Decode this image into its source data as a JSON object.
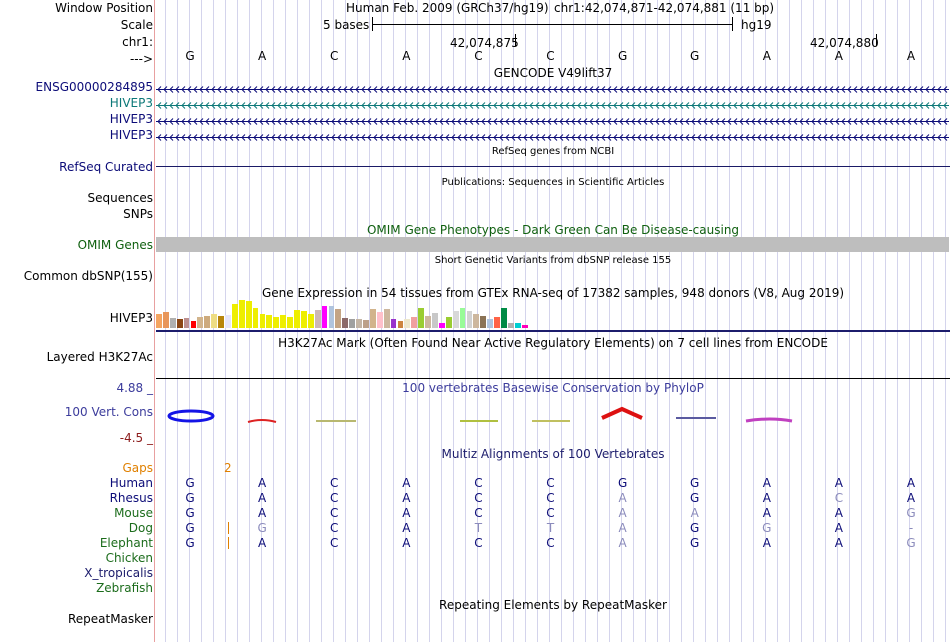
{
  "labels": {
    "window_position": "Window Position",
    "scale": "Scale",
    "chrom": "chr1:",
    "arrow": "--->",
    "gene1": "ENSG00000284895",
    "gene2": "HIVEP3",
    "gene3": "HIVEP3",
    "gene4": "HIVEP3",
    "refseq": "RefSeq Curated",
    "sequences": "Sequences",
    "snps": "SNPs",
    "omim": "OMIM Genes",
    "dbsnp": "Common dbSNP(155)",
    "gtex": "HIVEP3",
    "h3k27ac": "Layered H3K27Ac",
    "cons_max": "4.88 _",
    "cons_label": "100 Vert. Cons",
    "cons_min": "-4.5 _",
    "gaps": "Gaps",
    "species": [
      "Human",
      "Rhesus",
      "Mouse",
      "Dog",
      "Elephant",
      "Chicken",
      "X_tropicalis",
      "Zebrafish"
    ],
    "repeatmasker": "RepeatMasker"
  },
  "header": {
    "assembly": "Human Feb. 2009 (GRCh37/hg19)",
    "position": "chr1:42,074,871-42,074,881 (11 bp)",
    "scale_text": "5 bases",
    "scale_db": "hg19",
    "coord1": "42,074,875",
    "coord2": "42,074,880"
  },
  "sequence": [
    "G",
    "A",
    "C",
    "A",
    "C",
    "C",
    "G",
    "G",
    "A",
    "A",
    "A"
  ],
  "track_titles": {
    "gencode": "GENCODE V49lift37",
    "refseq": "RefSeq genes from NCBI",
    "publications": "Publications: Sequences in Scientific Articles",
    "omim": "OMIM Gene Phenotypes - Dark Green Can Be Disease-causing",
    "dbsnp": "Short Genetic Variants from dbSNP release 155",
    "gtex": "Gene Expression in 54 tissues from GTEx RNA-seq of 17382 samples, 948 donors (V8, Aug 2019)",
    "h3k27ac": "H3K27Ac Mark (Often Found Near Active Regulatory Elements) on 7 cell lines from ENCODE",
    "phylop": "100 vertebrates Basewise Conservation by PhyloP",
    "multiz": "Multiz Alignments of 100 Vertebrates",
    "repeatmasker": "Repeating Elements by RepeatMasker"
  },
  "gaps_value": "2",
  "alignment": {
    "Human": [
      "G",
      "A",
      "C",
      "A",
      "C",
      "C",
      "G",
      "G",
      "A",
      "A",
      "A"
    ],
    "Rhesus": [
      "G",
      "A",
      "C",
      "A",
      "C",
      "C",
      "A",
      "G",
      "A",
      "C",
      "A"
    ],
    "Mouse": [
      "G",
      "A",
      "C",
      "A",
      "C",
      "C",
      "A",
      "A",
      "A",
      "A",
      "G"
    ],
    "Dog": [
      "G",
      "G",
      "C",
      "A",
      "T",
      "T",
      "A",
      "G",
      "G",
      "A",
      "-"
    ],
    "Elephant": [
      "G",
      "A",
      "C",
      "A",
      "C",
      "C",
      "A",
      "G",
      "A",
      "A",
      "G"
    ]
  },
  "alignment_faded": {
    "Rhesus": [
      false,
      false,
      false,
      false,
      false,
      false,
      true,
      false,
      false,
      true,
      false
    ],
    "Mouse": [
      false,
      false,
      false,
      false,
      false,
      false,
      true,
      true,
      false,
      false,
      true
    ],
    "Dog": [
      false,
      true,
      false,
      false,
      true,
      true,
      true,
      false,
      true,
      false,
      true
    ],
    "Elephant": [
      false,
      false,
      false,
      false,
      false,
      false,
      true,
      false,
      false,
      false,
      true
    ]
  },
  "gtex_bars": [
    {
      "color": "#f4a460",
      "value": 14
    },
    {
      "color": "#e8965a",
      "value": 16
    },
    {
      "color": "#b0b0b0",
      "value": 10
    },
    {
      "color": "#8b4513",
      "value": 9
    },
    {
      "color": "#bc8f8f",
      "value": 10
    },
    {
      "color": "#ff0000",
      "value": 7
    },
    {
      "color": "#d2b48c",
      "value": 11
    },
    {
      "color": "#cdaa7d",
      "value": 12
    },
    {
      "color": "#eedd82",
      "value": 14
    },
    {
      "color": "#b8860b",
      "value": 12
    },
    {
      "color": "#e6e6fa",
      "value": 13
    },
    {
      "color": "#eeee00",
      "value": 24
    },
    {
      "color": "#eeee00",
      "value": 28
    },
    {
      "color": "#eeee00",
      "value": 27
    },
    {
      "color": "#eeee00",
      "value": 20
    },
    {
      "color": "#eeee00",
      "value": 14
    },
    {
      "color": "#eeee00",
      "value": 13
    },
    {
      "color": "#eeee00",
      "value": 11
    },
    {
      "color": "#eeee00",
      "value": 13
    },
    {
      "color": "#eeee00",
      "value": 11
    },
    {
      "color": "#eeee00",
      "value": 18
    },
    {
      "color": "#eeee00",
      "value": 17
    },
    {
      "color": "#eeee00",
      "value": 14
    },
    {
      "color": "#cdb7b5",
      "value": 18
    },
    {
      "color": "#ff00ff",
      "value": 22
    },
    {
      "color": "#b0c4de",
      "value": 22
    },
    {
      "color": "#c4a484",
      "value": 19
    },
    {
      "color": "#8b6969",
      "value": 10
    },
    {
      "color": "#a0a0a0",
      "value": 9
    },
    {
      "color": "#c4b5a5",
      "value": 9
    },
    {
      "color": "#bca089",
      "value": 8
    },
    {
      "color": "#d2b48c",
      "value": 19
    },
    {
      "color": "#ffc0cb",
      "value": 16
    },
    {
      "color": "#cdb79e",
      "value": 19
    },
    {
      "color": "#9932cc",
      "value": 9
    },
    {
      "color": "#cd853f",
      "value": 7
    },
    {
      "color": "#eee8cd",
      "value": 9
    },
    {
      "color": "#f0a0a0",
      "value": 11
    },
    {
      "color": "#9acd32",
      "value": 20
    },
    {
      "color": "#cdb79e",
      "value": 12
    },
    {
      "color": "#c8c8c8",
      "value": 15
    },
    {
      "color": "#ff00ff",
      "value": 5
    },
    {
      "color": "#9acd32",
      "value": 11
    },
    {
      "color": "#d8d8d8",
      "value": 17
    },
    {
      "color": "#98fb98",
      "value": 20
    },
    {
      "color": "#d2d2d2",
      "value": 17
    },
    {
      "color": "#cdb79e",
      "value": 14
    },
    {
      "color": "#8b7355",
      "value": 12
    },
    {
      "color": "#b0c4de",
      "value": 9
    },
    {
      "color": "#ff6347",
      "value": 11
    },
    {
      "color": "#008b45",
      "value": 20
    },
    {
      "color": "#b0b0b0",
      "value": 5
    },
    {
      "color": "#00ced1",
      "value": 5
    },
    {
      "color": "#ff00bb",
      "value": 3
    }
  ],
  "colors": {
    "gene_blue": "#0c0c78",
    "gene_teal": "#0c7878",
    "omim_gray": "#bebebe",
    "omim_green": "#106010",
    "phylop_blue": "#3c3c9c",
    "cons_max_color": "#3c3c9c",
    "cons_min_color": "#8c1c1c",
    "gaps_orange": "#e08000",
    "primate": "#0c0c78",
    "mammal": "#1c6c1c",
    "other_vert": "#1c1c6c"
  }
}
